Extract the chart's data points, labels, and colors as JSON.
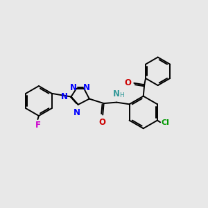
{
  "bg_color": "#e8e8e8",
  "bond_width": 1.4,
  "font_size_N": 8.5,
  "font_size_O": 8.5,
  "font_size_F": 8.5,
  "font_size_Cl": 8.0,
  "font_size_H": 7.0,
  "fig_width": 3.0,
  "fig_height": 3.0,
  "dpi": 100,
  "xlim": [
    0,
    10
  ],
  "ylim": [
    1,
    9
  ]
}
